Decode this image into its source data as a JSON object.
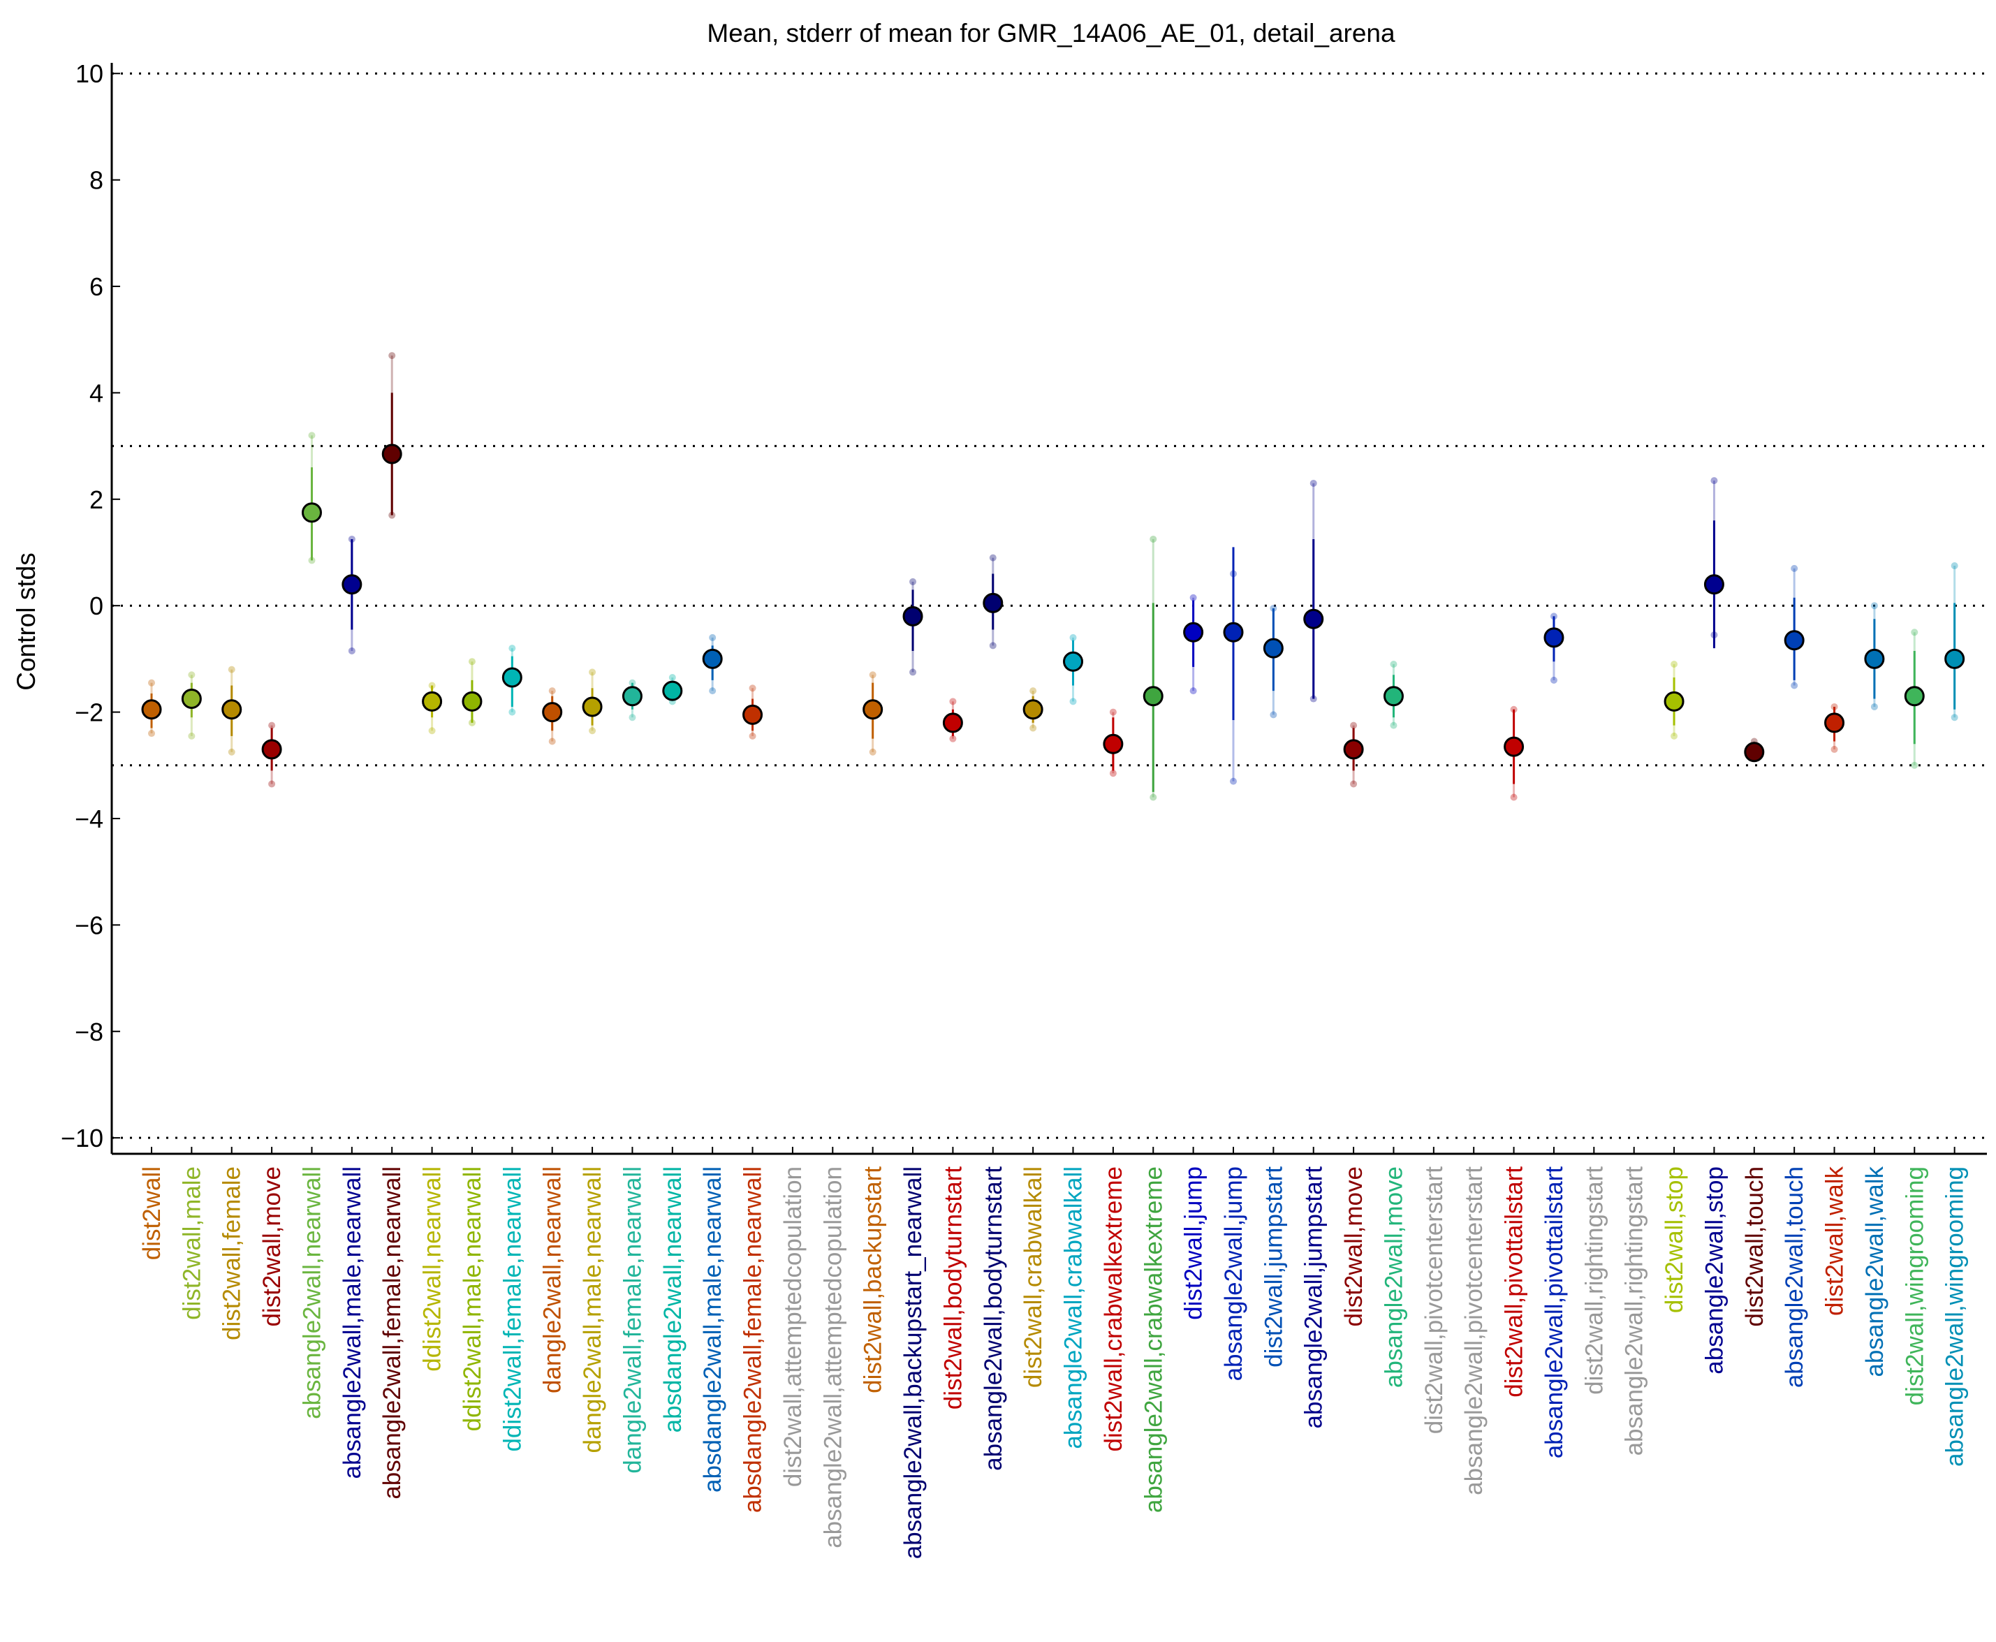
{
  "chart_data": {
    "type": "scatter",
    "title": "Mean, stderr of mean for GMR_14A06_AE_01, detail_arena",
    "xlabel": "",
    "ylabel": "Control stds",
    "ylim": [
      -10.3,
      10.2
    ],
    "yticks": [
      10,
      8,
      6,
      4,
      2,
      0,
      -2,
      -4,
      -6,
      -8,
      -10
    ],
    "ytick_labels": [
      "10",
      "8",
      "6",
      "4",
      "2",
      "0",
      "−2",
      "−4",
      "−6",
      "−8",
      "−10"
    ],
    "reference_lines": [
      10,
      3,
      0,
      -3,
      -10
    ],
    "grid": false,
    "legend": "none",
    "categories": [
      {
        "label": "dist2wall",
        "color": "#bf5f00",
        "mean": -1.95,
        "sem_low": -2.3,
        "sem_high": -1.65,
        "min": -2.4,
        "max": -1.45
      },
      {
        "label": "dist2wall,male",
        "color": "#8fb528",
        "mean": -1.75,
        "sem_low": -2.1,
        "sem_high": -1.45,
        "min": -2.45,
        "max": -1.3
      },
      {
        "label": "dist2wall,female",
        "color": "#b58a00",
        "mean": -1.95,
        "sem_low": -2.45,
        "sem_high": -1.5,
        "min": -2.75,
        "max": -1.2
      },
      {
        "label": "dist2wall,move",
        "color": "#990000",
        "mean": -2.7,
        "sem_low": -3.1,
        "sem_high": -2.3,
        "min": -3.35,
        "max": -2.25
      },
      {
        "label": "absangle2wall,nearwall",
        "color": "#6ab53f",
        "mean": 1.75,
        "sem_low": 0.85,
        "sem_high": 2.6,
        "min": 0.85,
        "max": 3.2
      },
      {
        "label": "absangle2wall,male,nearwall",
        "color": "#00008f",
        "mean": 0.4,
        "sem_low": -0.45,
        "sem_high": 1.25,
        "min": -0.85,
        "max": 1.25
      },
      {
        "label": "absangle2wall,female,nearwall",
        "color": "#600000",
        "mean": 2.85,
        "sem_low": 1.7,
        "sem_high": 4.0,
        "min": 1.7,
        "max": 4.7
      },
      {
        "label": "ddist2wall,nearwall",
        "color": "#b5b500",
        "mean": -1.8,
        "sem_low": -2.1,
        "sem_high": -1.5,
        "min": -2.35,
        "max": -1.5
      },
      {
        "label": "ddist2wall,male,nearwall",
        "color": "#8fb500",
        "mean": -1.8,
        "sem_low": -2.2,
        "sem_high": -1.4,
        "min": -2.2,
        "max": -1.05
      },
      {
        "label": "ddist2wall,female,nearwall",
        "color": "#00b5b5",
        "mean": -1.35,
        "sem_low": -1.9,
        "sem_high": -0.95,
        "min": -2.0,
        "max": -0.8
      },
      {
        "label": "dangle2wall,nearwall",
        "color": "#bf5000",
        "mean": -2.0,
        "sem_low": -2.35,
        "sem_high": -1.7,
        "min": -2.55,
        "max": -1.6
      },
      {
        "label": "dangle2wall,male,nearwall",
        "color": "#b5a000",
        "mean": -1.9,
        "sem_low": -2.25,
        "sem_high": -1.55,
        "min": -2.35,
        "max": -1.25
      },
      {
        "label": "dangle2wall,female,nearwall",
        "color": "#22b59a",
        "mean": -1.7,
        "sem_low": -1.95,
        "sem_high": -1.45,
        "min": -2.1,
        "max": -1.45
      },
      {
        "label": "absdangle2wall,nearwall",
        "color": "#00b5a5",
        "mean": -1.6,
        "sem_low": -1.75,
        "sem_high": -1.45,
        "min": -1.8,
        "max": -1.35
      },
      {
        "label": "absdangle2wall,male,nearwall",
        "color": "#0060b5",
        "mean": -1.0,
        "sem_low": -1.4,
        "sem_high": -0.75,
        "min": -1.6,
        "max": -0.6
      },
      {
        "label": "absdangle2wall,female,nearwall",
        "color": "#c03000",
        "mean": -2.05,
        "sem_low": -2.35,
        "sem_high": -1.75,
        "min": -2.45,
        "max": -1.55
      },
      {
        "label": "dist2wall,attemptedcopulation",
        "color": "#999999",
        "mean": null
      },
      {
        "label": "absangle2wall,attemptedcopulation",
        "color": "#999999",
        "mean": null
      },
      {
        "label": "dist2wall,backupstart",
        "color": "#c06000",
        "mean": -1.95,
        "sem_low": -2.5,
        "sem_high": -1.45,
        "min": -2.75,
        "max": -1.3
      },
      {
        "label": "absangle2wall,backupstart_nearwall",
        "color": "#000070",
        "mean": -0.2,
        "sem_low": -0.85,
        "sem_high": 0.3,
        "min": -1.25,
        "max": 0.45
      },
      {
        "label": "dist2wall,bodyturnstart",
        "color": "#c00000",
        "mean": -2.2,
        "sem_low": -2.45,
        "sem_high": -1.95,
        "min": -2.5,
        "max": -1.8
      },
      {
        "label": "absangle2wall,bodyturnstart",
        "color": "#000070",
        "mean": 0.05,
        "sem_low": -0.45,
        "sem_high": 0.6,
        "min": -0.75,
        "max": 0.9
      },
      {
        "label": "dist2wall,crabwalkall",
        "color": "#b58a00",
        "mean": -1.95,
        "sem_low": -2.2,
        "sem_high": -1.7,
        "min": -2.3,
        "max": -1.6
      },
      {
        "label": "absangle2wall,crabwalkall",
        "color": "#00a5c0",
        "mean": -1.05,
        "sem_low": -1.5,
        "sem_high": -0.65,
        "min": -1.8,
        "max": -0.6
      },
      {
        "label": "dist2wall,crabwalkextreme",
        "color": "#c00000",
        "mean": -2.6,
        "sem_low": -3.1,
        "sem_high": -2.1,
        "min": -3.15,
        "max": -2.0
      },
      {
        "label": "absangle2wall,crabwalkextreme",
        "color": "#3fa53f",
        "mean": -1.7,
        "sem_low": -3.5,
        "sem_high": 0.05,
        "min": -3.6,
        "max": 1.25
      },
      {
        "label": "dist2wall,jump",
        "color": "#0000c0",
        "mean": -0.5,
        "sem_low": -1.15,
        "sem_high": 0.1,
        "min": -1.6,
        "max": 0.15
      },
      {
        "label": "absangle2wall,jump",
        "color": "#0022b5",
        "mean": -0.5,
        "sem_low": -2.15,
        "sem_high": 1.1,
        "min": -3.3,
        "max": 0.6
      },
      {
        "label": "dist2wall,jumpstart",
        "color": "#0050b5",
        "mean": -0.8,
        "sem_low": -1.6,
        "sem_high": -0.05,
        "min": -2.05,
        "max": -0.05
      },
      {
        "label": "absangle2wall,jumpstart",
        "color": "#00008a",
        "mean": -0.25,
        "sem_low": -1.75,
        "sem_high": 1.25,
        "min": -1.75,
        "max": 2.3
      },
      {
        "label": "dist2wall,move",
        "color": "#8a0000",
        "mean": -2.7,
        "sem_low": -3.1,
        "sem_high": -2.3,
        "min": -3.35,
        "max": -2.25
      },
      {
        "label": "absangle2wall,move",
        "color": "#22b57a",
        "mean": -1.7,
        "sem_low": -2.1,
        "sem_high": -1.3,
        "min": -2.25,
        "max": -1.1
      },
      {
        "label": "dist2wall,pivotcenterstart",
        "color": "#999999",
        "mean": null
      },
      {
        "label": "absangle2wall,pivotcenterstart",
        "color": "#999999",
        "mean": null
      },
      {
        "label": "dist2wall,pivottailstart",
        "color": "#c00000",
        "mean": -2.65,
        "sem_low": -3.35,
        "sem_high": -1.95,
        "min": -3.6,
        "max": -1.95
      },
      {
        "label": "absangle2wall,pivottailstart",
        "color": "#0022b5",
        "mean": -0.6,
        "sem_low": -1.05,
        "sem_high": -0.2,
        "min": -1.4,
        "max": -0.2
      },
      {
        "label": "dist2wall,rightingstart",
        "color": "#999999",
        "mean": null
      },
      {
        "label": "absangle2wall,rightingstart",
        "color": "#999999",
        "mean": null
      },
      {
        "label": "dist2wall,stop",
        "color": "#a5c000",
        "mean": -1.8,
        "sem_low": -2.25,
        "sem_high": -1.35,
        "min": -2.45,
        "max": -1.1
      },
      {
        "label": "absangle2wall,stop",
        "color": "#00008f",
        "mean": 0.4,
        "sem_low": -0.8,
        "sem_high": 1.6,
        "min": -0.55,
        "max": 2.35
      },
      {
        "label": "dist2wall,touch",
        "color": "#600000",
        "mean": -2.75,
        "sem_low": -2.85,
        "sem_high": -2.65,
        "min": -2.85,
        "max": -2.55
      },
      {
        "label": "absangle2wall,touch",
        "color": "#0040b5",
        "mean": -0.65,
        "sem_low": -1.4,
        "sem_high": 0.15,
        "min": -1.5,
        "max": 0.7
      },
      {
        "label": "dist2wall,walk",
        "color": "#c02000",
        "mean": -2.2,
        "sem_low": -2.55,
        "sem_high": -1.9,
        "min": -2.7,
        "max": -1.9
      },
      {
        "label": "absangle2wall,walk",
        "color": "#0070b5",
        "mean": -1.0,
        "sem_low": -1.75,
        "sem_high": -0.25,
        "min": -1.9,
        "max": 0.0
      },
      {
        "label": "dist2wall,wingrooming",
        "color": "#3fb55a",
        "mean": -1.7,
        "sem_low": -2.6,
        "sem_high": -0.85,
        "min": -3.0,
        "max": -0.5
      },
      {
        "label": "absangle2wall,wingrooming",
        "color": "#0090b5",
        "mean": -1.0,
        "sem_low": -1.95,
        "sem_high": 0.05,
        "min": -2.1,
        "max": 0.75
      }
    ]
  }
}
